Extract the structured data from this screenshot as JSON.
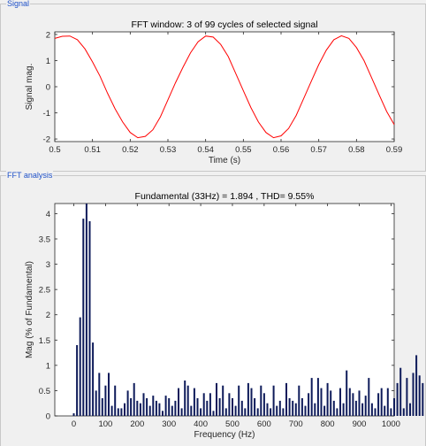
{
  "panels": {
    "signal_title": "Signal",
    "fft_title": "FFT analysis"
  },
  "colors": {
    "signal_line": "#ff0000",
    "bar_fill": "#0e1b5a",
    "plot_bg": "#ffffff",
    "panel_title": "#1e50c8"
  },
  "chart_data": [
    {
      "type": "line",
      "title": "FFT window: 3 of 99 cycles of selected signal",
      "xlabel": "Time (s)",
      "ylabel": "Signal mag.",
      "xlim": [
        0.5,
        0.59
      ],
      "ylim": [
        -2.1,
        2.1
      ],
      "xticks": [
        0.5,
        0.51,
        0.52,
        0.53,
        0.54,
        0.55,
        0.56,
        0.57,
        0.58,
        0.59
      ],
      "xtick_labels": [
        "0.5",
        "0.51",
        "0.52",
        "0.53",
        "0.54",
        "0.55",
        "0.56",
        "0.57",
        "0.58",
        "0.59"
      ],
      "yticks": [
        -2,
        -1,
        0,
        1,
        2
      ],
      "ytick_labels": [
        "-2",
        "-1",
        "0",
        "1",
        "2"
      ],
      "grid": false,
      "series": [
        {
          "x": [
            0.5,
            0.502,
            0.504,
            0.506,
            0.508,
            0.51,
            0.512,
            0.514,
            0.516,
            0.518,
            0.52,
            0.522,
            0.524,
            0.526,
            0.528,
            0.53,
            0.532,
            0.534,
            0.536,
            0.538,
            0.54,
            0.542,
            0.544,
            0.546,
            0.548,
            0.55,
            0.552,
            0.554,
            0.556,
            0.558,
            0.56,
            0.562,
            0.564,
            0.566,
            0.568,
            0.57,
            0.572,
            0.574,
            0.576,
            0.578,
            0.58,
            0.582,
            0.584,
            0.586,
            0.588,
            0.59
          ],
          "y": [
            1.85,
            1.93,
            1.94,
            1.8,
            1.45,
            0.95,
            0.4,
            -0.25,
            -0.85,
            -1.35,
            -1.75,
            -1.95,
            -1.9,
            -1.65,
            -1.15,
            -0.5,
            0.15,
            0.75,
            1.3,
            1.72,
            1.94,
            1.9,
            1.62,
            1.15,
            0.5,
            -0.15,
            -0.8,
            -1.35,
            -1.75,
            -1.95,
            -1.88,
            -1.6,
            -1.1,
            -0.45,
            0.2,
            0.85,
            1.4,
            1.8,
            1.95,
            1.85,
            1.5,
            1.0,
            0.35,
            -0.3,
            -0.95,
            -1.45
          ]
        }
      ]
    },
    {
      "type": "bar",
      "title": "Fundamental (33Hz) = 1.894 , THD= 9.55%",
      "xlabel": "Frequency (Hz)",
      "ylabel": "Mag (% of Fundamental)",
      "xlim": [
        -60,
        1010
      ],
      "ylim": [
        0,
        4.2
      ],
      "xticks": [
        0,
        100,
        200,
        300,
        400,
        500,
        600,
        700,
        800,
        900,
        1000
      ],
      "xtick_labels": [
        "0",
        "100",
        "200",
        "300",
        "400",
        "500",
        "600",
        "700",
        "800",
        "900",
        "1000"
      ],
      "yticks": [
        0,
        0.5,
        1,
        1.5,
        2,
        2.5,
        3,
        3.5,
        4
      ],
      "ytick_labels": [
        "0",
        "0.5",
        "1",
        "1.5",
        "2",
        "2.5",
        "3",
        "3.5",
        "4"
      ],
      "grid": false,
      "bar_step_hz": 10,
      "values": [
        0.05,
        1.4,
        1.95,
        3.9,
        4.2,
        3.85,
        1.45,
        0.5,
        0.85,
        0.35,
        0.6,
        0.85,
        0.2,
        0.6,
        0.15,
        0.15,
        0.25,
        0.5,
        0.35,
        0.65,
        0.3,
        0.25,
        0.45,
        0.35,
        0.2,
        0.4,
        0.3,
        0.25,
        0.1,
        0.4,
        0.35,
        0.2,
        0.3,
        0.55,
        0.15,
        0.7,
        0.6,
        0.2,
        0.55,
        0.35,
        0.15,
        0.45,
        0.3,
        0.45,
        0.1,
        0.65,
        0.35,
        0.6,
        0.15,
        0.45,
        0.35,
        0.2,
        0.6,
        0.3,
        0.15,
        0.65,
        0.55,
        0.35,
        0.15,
        0.6,
        0.45,
        0.25,
        0.15,
        0.6,
        0.2,
        0.3,
        0.15,
        0.65,
        0.35,
        0.3,
        0.25,
        0.6,
        0.35,
        0.2,
        0.45,
        0.75,
        0.25,
        0.75,
        0.55,
        0.2,
        0.65,
        0.5,
        0.3,
        0.15,
        0.55,
        0.25,
        0.9,
        0.55,
        0.45,
        0.3,
        0.5,
        0.25,
        0.4,
        0.75,
        0.25,
        0.15,
        0.45,
        0.55,
        0.2,
        0.55,
        0.15,
        0.35,
        0.65,
        0.95,
        0.15,
        0.75,
        0.25,
        0.85,
        1.2,
        0.8,
        0.65
      ]
    }
  ]
}
